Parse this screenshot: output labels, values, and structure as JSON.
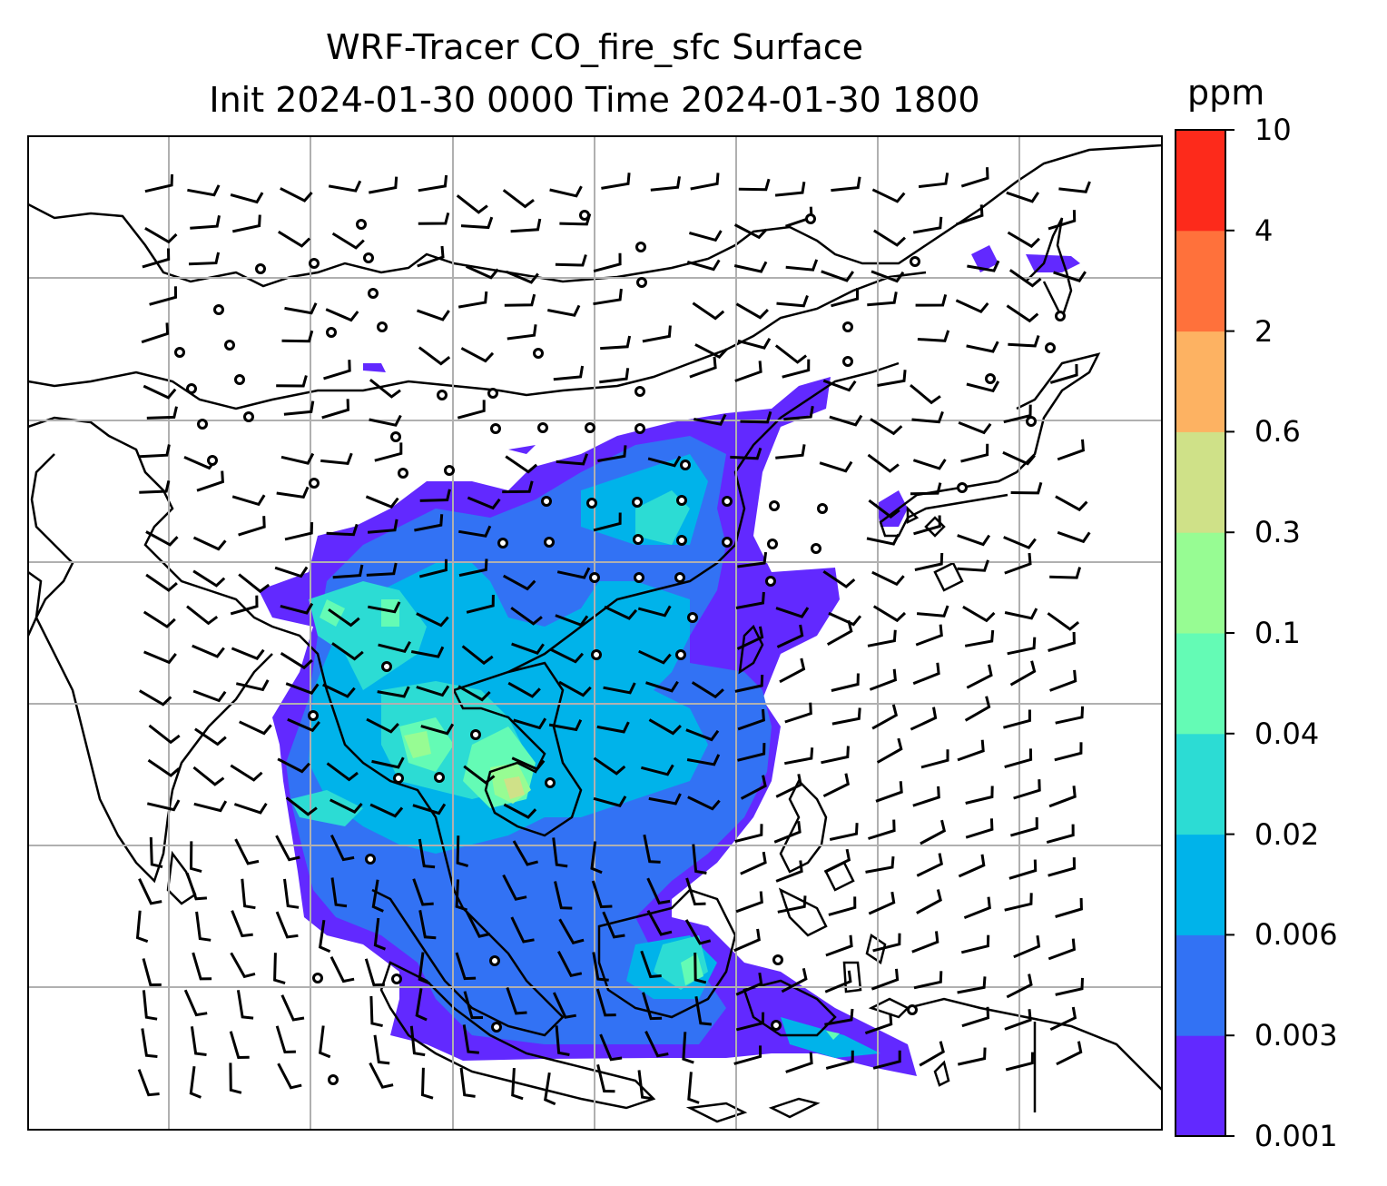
{
  "title_line1": "WRF-Tracer CO_fire_sfc Surface",
  "title_line2": "Init 2024-01-30 0000 Time 2024-01-30 1800",
  "colorbar": {
    "units": "ppm",
    "levels": [
      "0.001",
      "0.003",
      "0.006",
      "0.02",
      "0.04",
      "0.1",
      "0.3",
      "0.6",
      "2",
      "4",
      "10"
    ],
    "colors": [
      "#6229ff",
      "#3272f4",
      "#00b3ea",
      "#2cdcd4",
      "#64fbb5",
      "#97fc93",
      "#cfe188",
      "#fdb262",
      "#ff713b",
      "#fd2a1b"
    ]
  },
  "map": {
    "projection": "lat-lon with gridlines",
    "gridlines": true,
    "coastline_color": "#000000",
    "barb_color": "#000000",
    "field": "CO_fire_sfc concentration over Southeast Asia / South China Sea",
    "max_concentration_band": "0.3-0.6 ppm over Cambodia"
  }
}
